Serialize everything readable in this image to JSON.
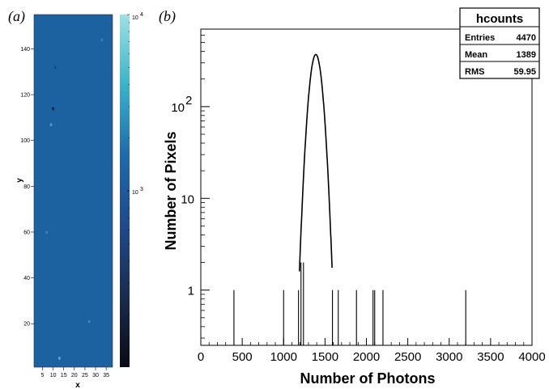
{
  "chart_data": [
    {
      "panel_label": "(a)",
      "type": "heatmap",
      "xlabel": "x",
      "ylabel": "y",
      "x_range": [
        1,
        38
      ],
      "y_range": [
        1,
        155
      ],
      "x_ticks": [
        5,
        10,
        15,
        20,
        25,
        30,
        35
      ],
      "y_ticks": [
        20,
        40,
        60,
        80,
        100,
        120,
        140
      ],
      "colorbar": {
        "scale": "log",
        "range": [
          100,
          10000
        ],
        "tick_labels": [
          {
            "value": 10000,
            "base": "10",
            "exp": "4"
          },
          {
            "value": 1000,
            "base": "10",
            "exp": "3"
          }
        ],
        "colors": [
          "#0a0a14",
          "#1a2c4e",
          "#1f4a8a",
          "#1f6aa8",
          "#3bb3c8",
          "#9fe0e4"
        ]
      },
      "background_value": 1389,
      "background_color": "#1c61a0",
      "outlier_pixels": [
        {
          "x": 10,
          "y": 114,
          "color": "#0b1a33"
        },
        {
          "x": 9,
          "y": 107,
          "color": "#3aa6cc"
        },
        {
          "x": 13,
          "y": 5,
          "color": "#4fb0d8"
        },
        {
          "x": 27,
          "y": 21,
          "color": "#2f8ec0"
        },
        {
          "x": 33,
          "y": 144,
          "color": "#2b86bc"
        },
        {
          "x": 11,
          "y": 132,
          "color": "#134a80"
        },
        {
          "x": 7,
          "y": 60,
          "color": "#2a84b8"
        }
      ]
    },
    {
      "panel_label": "(b)",
      "type": "histogram",
      "title": "hcounts",
      "xlabel": "Number of Photons",
      "ylabel": "Number of Pixels",
      "xlim": [
        0,
        4000
      ],
      "ylim": [
        0.25,
        700
      ],
      "yscale": "log",
      "x_ticks": [
        0,
        500,
        1000,
        1500,
        2000,
        2500,
        3000,
        3500,
        4000
      ],
      "y_ticks": [
        {
          "value": 1,
          "label": "1"
        },
        {
          "value": 10,
          "label": "10"
        },
        {
          "value": 100,
          "base": "10",
          "exp": "2"
        }
      ],
      "stats_box": {
        "title": "hcounts",
        "rows": [
          {
            "label": "Entries",
            "value": "4470"
          },
          {
            "label": "Mean",
            "value": "1389"
          },
          {
            "label": "RMS",
            "value": "59.95"
          }
        ]
      },
      "peak": {
        "mean": 1389,
        "rms": 59.95,
        "entries": 4470,
        "peak_count": 370
      },
      "single_counts": [
        {
          "x": 400,
          "y": 1
        },
        {
          "x": 1000,
          "y": 1
        },
        {
          "x": 1180,
          "y": 1
        },
        {
          "x": 1590,
          "y": 1
        },
        {
          "x": 1660,
          "y": 1
        },
        {
          "x": 1880,
          "y": 1
        },
        {
          "x": 2080,
          "y": 1
        },
        {
          "x": 2100,
          "y": 1
        },
        {
          "x": 2200,
          "y": 1
        },
        {
          "x": 3200,
          "y": 1
        }
      ],
      "double_counts": [
        {
          "x": 1210,
          "y": 2
        },
        {
          "x": 1240,
          "y": 2
        }
      ]
    }
  ]
}
